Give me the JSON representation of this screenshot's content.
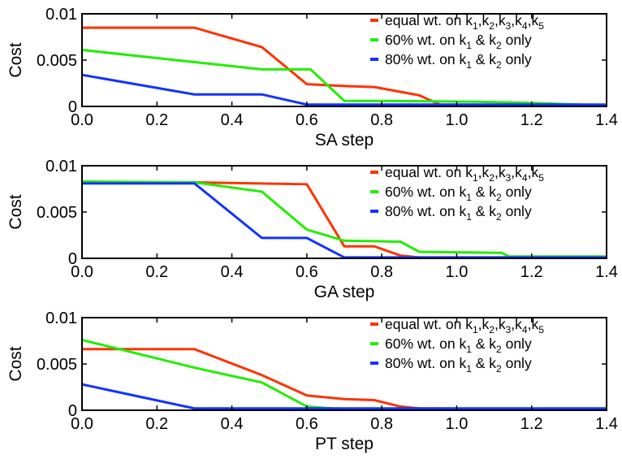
{
  "chart_data": [
    {
      "type": "line",
      "title": "",
      "xlabel": "SA step",
      "ylabel": "Cost",
      "xlim": [
        0,
        1.4
      ],
      "ylim": [
        0,
        0.01
      ],
      "xticks": [
        "0.0",
        "0.2",
        "0.4",
        "0.6",
        "0.8",
        "1.0",
        "1.2",
        "1.4"
      ],
      "yticks": [
        "0",
        "0.005",
        "0.01"
      ],
      "grid": false,
      "legend_position": "top-right",
      "series": [
        {
          "name": "equal wt. on k1,k2,k3,k4,k5",
          "color": "#ff3300",
          "x": [
            0,
            0.3,
            0.48,
            0.6,
            0.7,
            0.78,
            0.9,
            0.96,
            1.4
          ],
          "y": [
            0.0085,
            0.0085,
            0.0064,
            0.0024,
            0.0022,
            0.0021,
            0.0012,
            0.0001,
            0.0001
          ]
        },
        {
          "name": "60% wt. on k1 & k2 only",
          "color": "#22ee00",
          "x": [
            0,
            0.48,
            0.61,
            0.7,
            0.8,
            1.05,
            1.18,
            1.4
          ],
          "y": [
            0.0061,
            0.004,
            0.004,
            0.0006,
            0.0006,
            0.0005,
            0.0004,
            0.0001
          ]
        },
        {
          "name": "80% wt. on k1 & k2 only",
          "color": "#1133ff",
          "x": [
            0,
            0.3,
            0.48,
            0.6,
            1.4
          ],
          "y": [
            0.0034,
            0.0013,
            0.0013,
            0.0002,
            0.0002
          ]
        }
      ]
    },
    {
      "type": "line",
      "title": "",
      "xlabel": "GA step",
      "ylabel": "Cost",
      "xlim": [
        0,
        1.4
      ],
      "ylim": [
        0,
        0.01
      ],
      "xticks": [
        "0.0",
        "0.2",
        "0.4",
        "0.6",
        "0.8",
        "1.0",
        "1.2",
        "1.4"
      ],
      "yticks": [
        "0",
        "0.005",
        "0.01"
      ],
      "grid": false,
      "legend_position": "top-right",
      "series": [
        {
          "name": "equal wt. on k1,k2,k3,k4,k5",
          "color": "#ff3300",
          "x": [
            0,
            0.3,
            0.6,
            0.7,
            0.78,
            0.85,
            0.9,
            1.4
          ],
          "y": [
            0.0082,
            0.0082,
            0.008,
            0.0013,
            0.0013,
            0.0003,
            0.0001,
            0.0001
          ]
        },
        {
          "name": "60% wt. on k1 & k2 only",
          "color": "#22ee00",
          "x": [
            0,
            0.3,
            0.48,
            0.6,
            0.7,
            0.85,
            0.9,
            1.12,
            1.14,
            1.4
          ],
          "y": [
            0.0083,
            0.0082,
            0.0072,
            0.0031,
            0.0019,
            0.0018,
            0.0007,
            0.0006,
            0.0002,
            0.0002
          ]
        },
        {
          "name": "80% wt. on k1 & k2 only",
          "color": "#1133ff",
          "x": [
            0,
            0.3,
            0.48,
            0.6,
            0.7,
            1.4
          ],
          "y": [
            0.0081,
            0.0081,
            0.0022,
            0.0022,
            0.0001,
            0.0001
          ]
        }
      ]
    },
    {
      "type": "line",
      "title": "",
      "xlabel": "PT step",
      "ylabel": "Cost",
      "xlim": [
        0,
        1.4
      ],
      "ylim": [
        0,
        0.01
      ],
      "xticks": [
        "0.0",
        "0.2",
        "0.4",
        "0.6",
        "0.8",
        "1.0",
        "1.2",
        "1.4"
      ],
      "yticks": [
        "0",
        "0.005",
        "0.01"
      ],
      "grid": false,
      "legend_position": "top-right",
      "series": [
        {
          "name": "equal wt. on k1,k2,k3,k4,k5",
          "color": "#ff3300",
          "x": [
            0,
            0.3,
            0.48,
            0.6,
            0.7,
            0.78,
            0.85,
            0.9,
            1.4
          ],
          "y": [
            0.0066,
            0.0066,
            0.0038,
            0.0016,
            0.0012,
            0.0011,
            0.0004,
            0.0002,
            0.0001
          ]
        },
        {
          "name": "60% wt. on k1 & k2 only",
          "color": "#22ee00",
          "x": [
            0,
            0.3,
            0.48,
            0.6,
            0.7,
            1.4
          ],
          "y": [
            0.0076,
            0.0046,
            0.003,
            0.0004,
            0.0001,
            0.0001
          ]
        },
        {
          "name": "80% wt. on k1 & k2 only",
          "color": "#1133ff",
          "x": [
            0,
            0.3,
            1.4
          ],
          "y": [
            0.0028,
            0.0002,
            0.0002
          ]
        }
      ]
    }
  ]
}
